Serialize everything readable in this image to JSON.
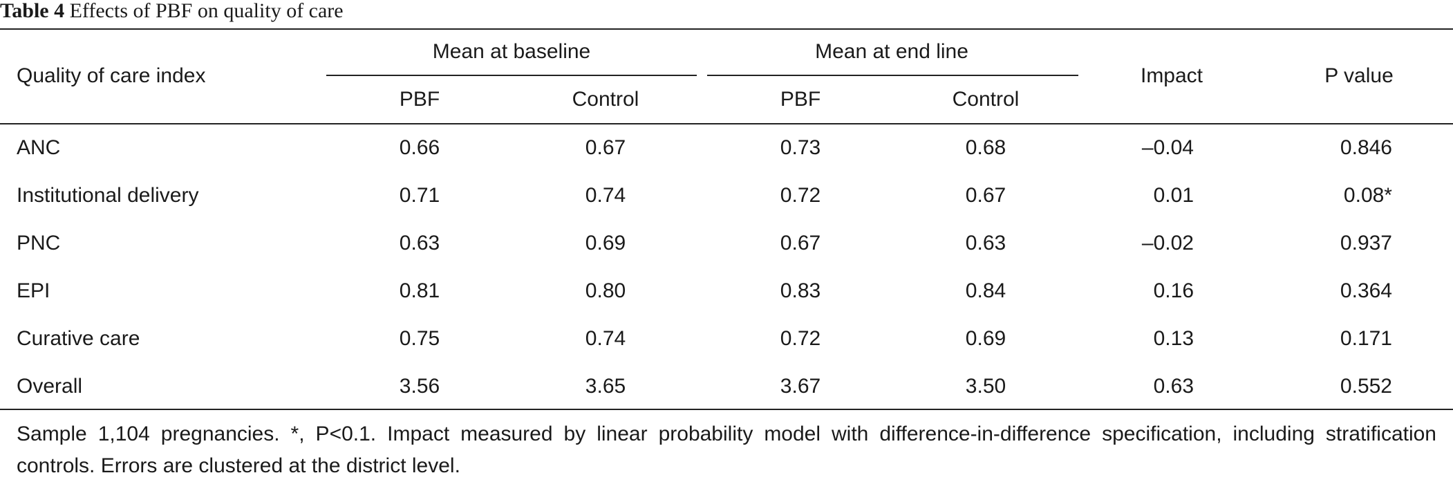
{
  "caption": {
    "label": "Table 4",
    "title": "Effects of PBF on quality of care"
  },
  "header": {
    "row_label": "Quality of care index",
    "group_baseline": "Mean at baseline",
    "group_endline": "Mean at end line",
    "pbf": "PBF",
    "control": "Control",
    "impact": "Impact",
    "p_value": "P value"
  },
  "rows": [
    {
      "name": "ANC",
      "base_pbf": "0.66",
      "base_ctrl": "0.67",
      "end_pbf": "0.73",
      "end_ctrl": "0.68",
      "impact": "–0.04",
      "p": "0.846"
    },
    {
      "name": "Institutional delivery",
      "base_pbf": "0.71",
      "base_ctrl": "0.74",
      "end_pbf": "0.72",
      "end_ctrl": "0.67",
      "impact": "0.01",
      "p": "0.08*"
    },
    {
      "name": "PNC",
      "base_pbf": "0.63",
      "base_ctrl": "0.69",
      "end_pbf": "0.67",
      "end_ctrl": "0.63",
      "impact": "–0.02",
      "p": "0.937"
    },
    {
      "name": "EPI",
      "base_pbf": "0.81",
      "base_ctrl": "0.80",
      "end_pbf": "0.83",
      "end_ctrl": "0.84",
      "impact": "0.16",
      "p": "0.364"
    },
    {
      "name": "Curative care",
      "base_pbf": "0.75",
      "base_ctrl": "0.74",
      "end_pbf": "0.72",
      "end_ctrl": "0.69",
      "impact": "0.13",
      "p": "0.171"
    },
    {
      "name": "Overall",
      "base_pbf": "3.56",
      "base_ctrl": "3.65",
      "end_pbf": "3.67",
      "end_ctrl": "3.50",
      "impact": "0.63",
      "p": "0.552"
    }
  ],
  "footnote": "Sample 1,104 pregnancies. *, P<0.1. Impact measured by linear probability model with difference-in-difference specification, including stratification controls. Errors are clustered at the district level."
}
